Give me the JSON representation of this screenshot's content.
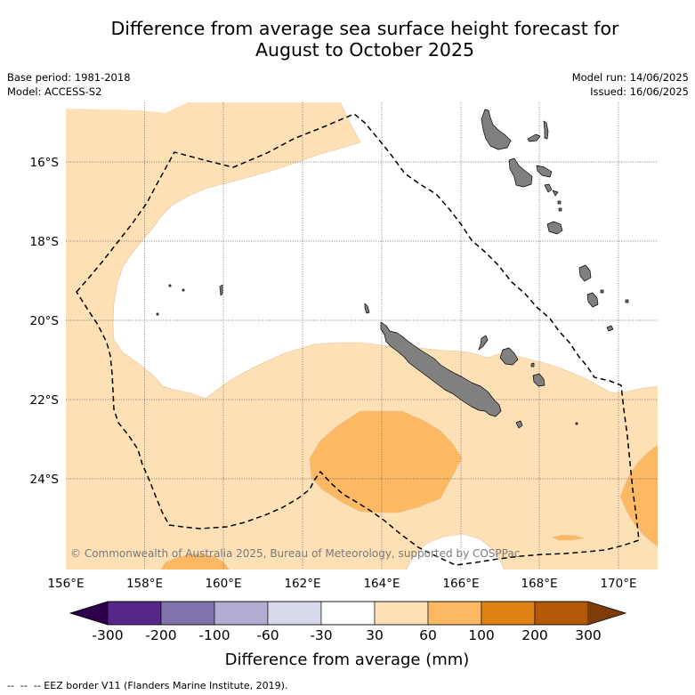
{
  "title": {
    "line1": "Difference from average sea surface height forecast for",
    "line2": "August to October 2025"
  },
  "info": {
    "base_period": "Base period: 1981-2018",
    "model": "Model: ACCESS-S2",
    "model_run": "Model run: 14/06/2025",
    "issued": "Issued: 16/06/2025"
  },
  "map": {
    "lat_labels": [
      "16°S",
      "18°S",
      "20°S",
      "22°S",
      "24°S"
    ],
    "lon_labels": [
      "156°E",
      "158°E",
      "160°E",
      "162°E",
      "164°E",
      "166°E",
      "168°E",
      "170°E"
    ],
    "copyright": "© Commonwealth of Australia 2025, Bureau of Meteorology, supported by COSPPac",
    "colors": {
      "land": "#808080",
      "band_minus30_30": "#ffffff",
      "band_30_60": "#fee0b6",
      "band_60_100": "#fdb863",
      "eez_border": "#000000"
    }
  },
  "colorbar": {
    "label": "Difference from average (mm)",
    "ticks": [
      "-300",
      "-200",
      "-100",
      "-60",
      "-30",
      "30",
      "60",
      "100",
      "200",
      "300"
    ],
    "colors": [
      "#2d004b",
      "#542788",
      "#8073ac",
      "#b2abd2",
      "#d8daeb",
      "#ffffff",
      "#fee0b6",
      "#fdb863",
      "#e08214",
      "#b35806",
      "#7f3b08"
    ],
    "extend": "both"
  },
  "legend": {
    "eez_border": "--  --  -- EEZ border V11 (Flanders Marine Institute, 2019)."
  }
}
